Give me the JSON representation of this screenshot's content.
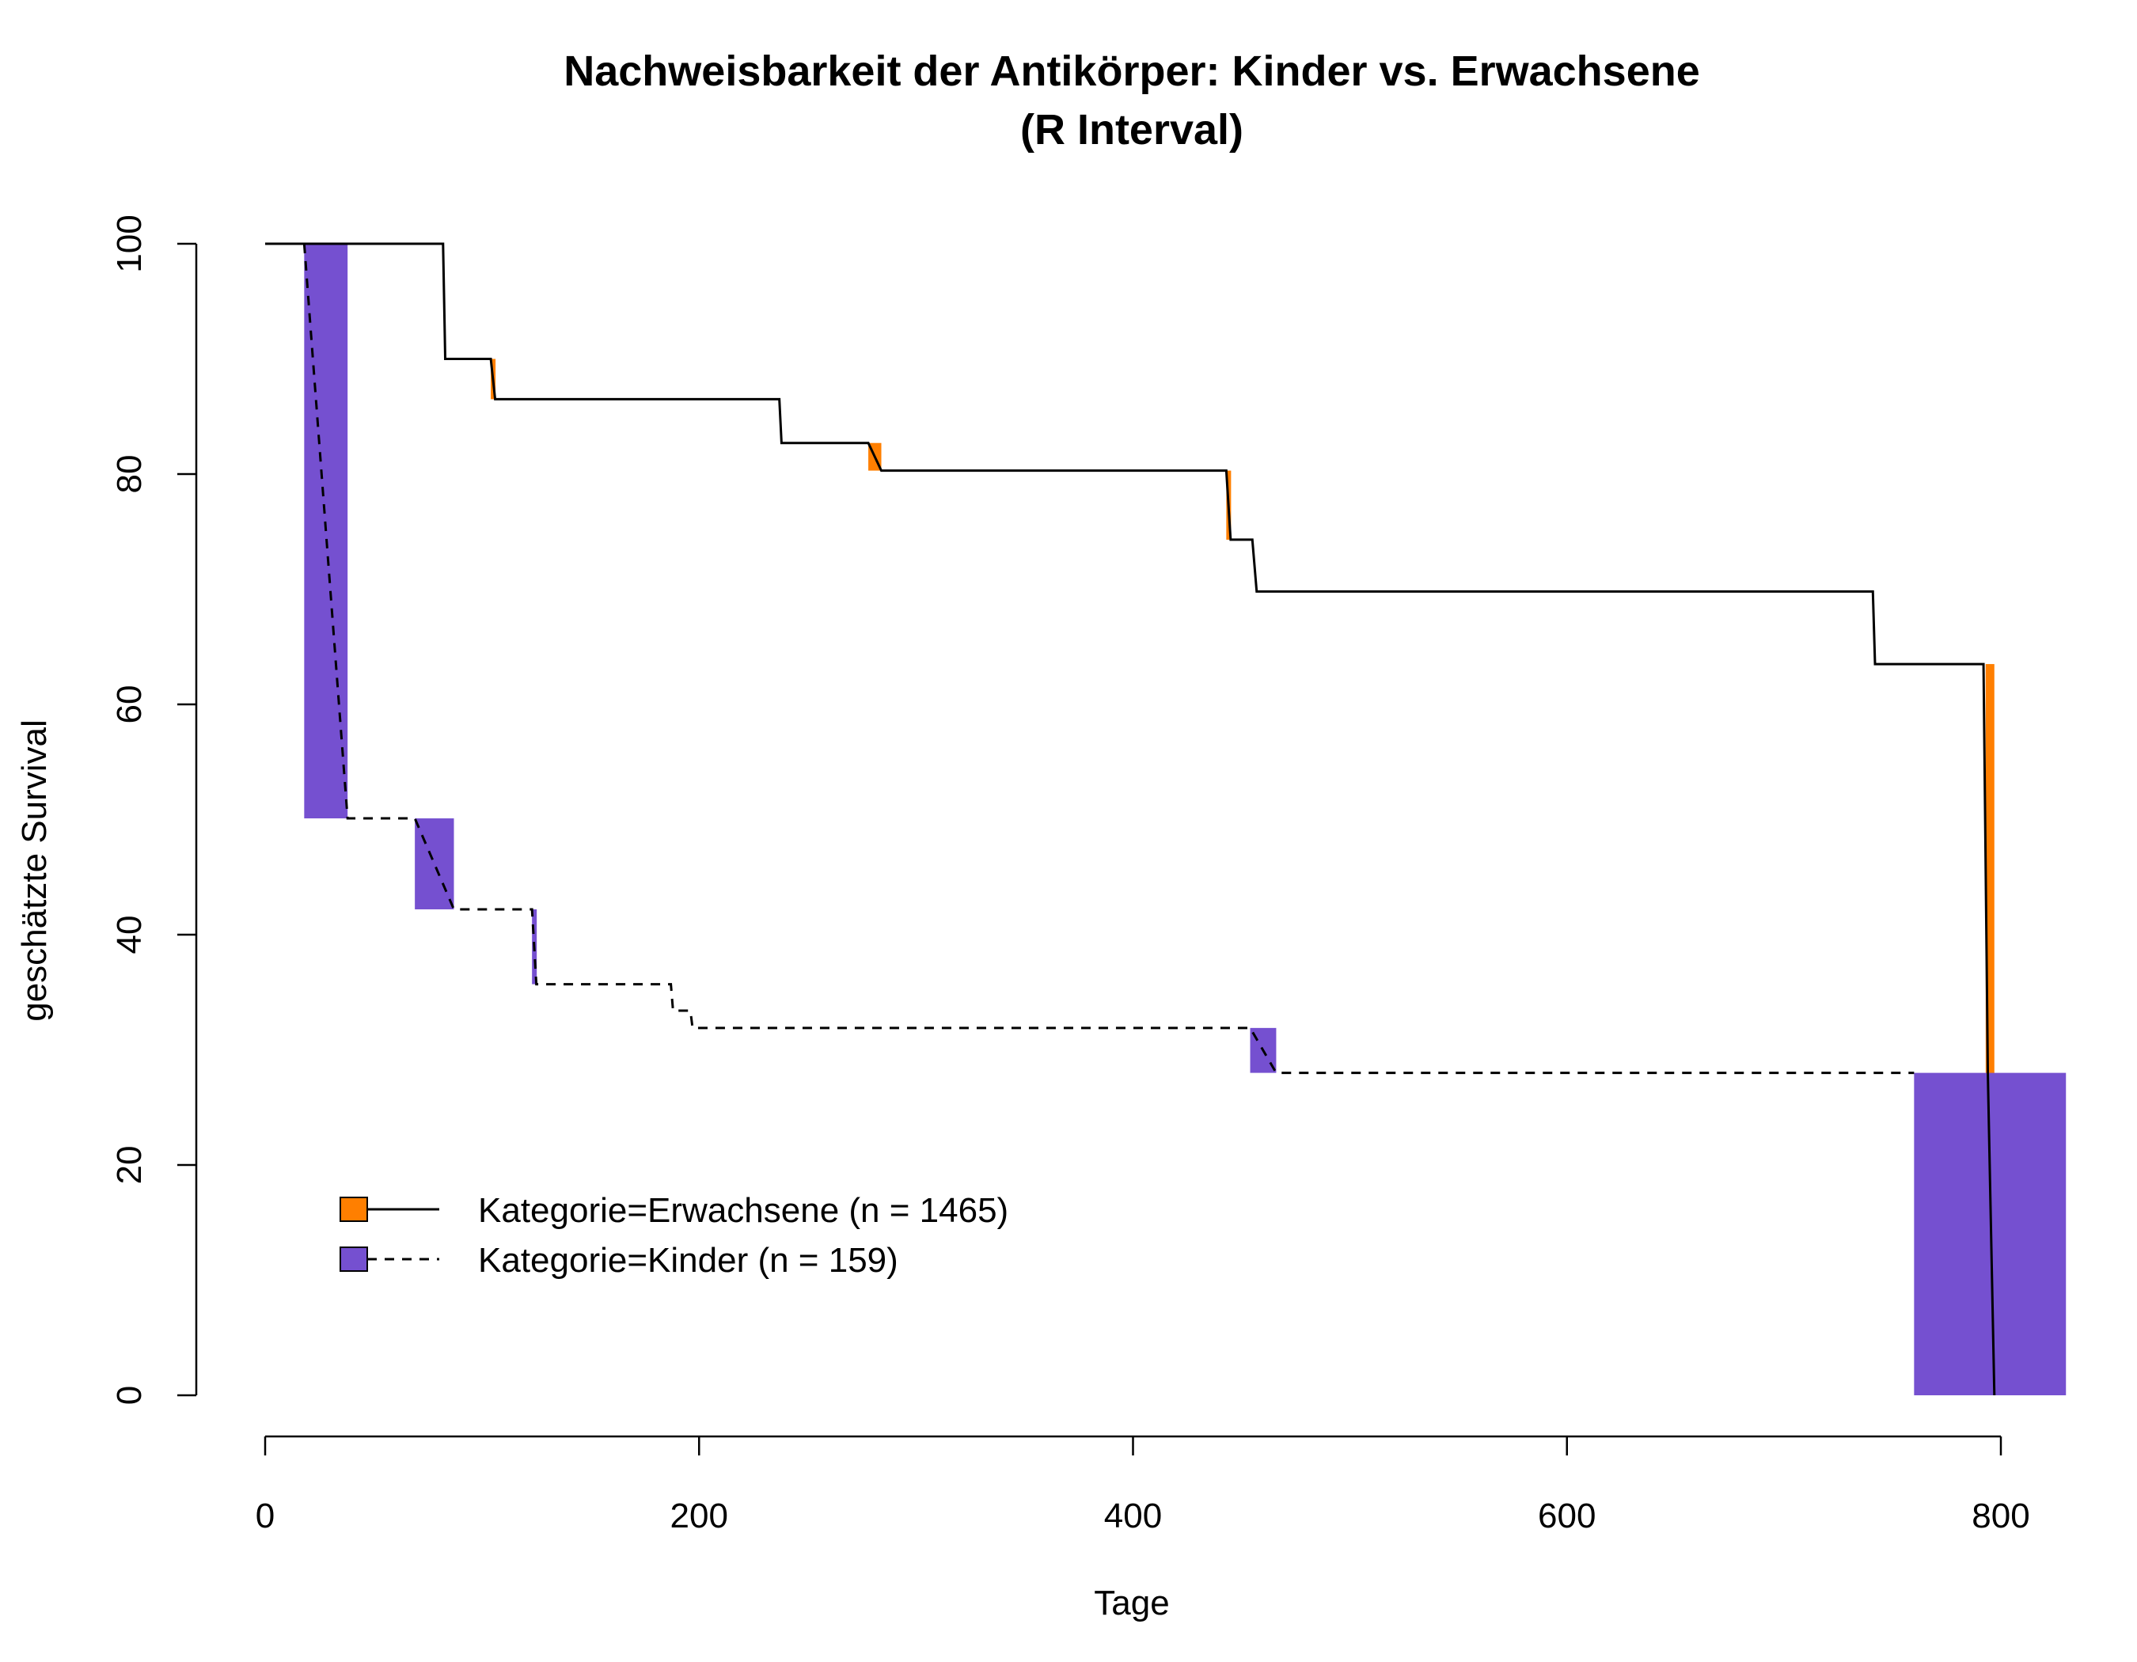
{
  "chart_data": {
    "type": "line",
    "title": "Nachweisbarkeit der Antikörper: Kinder vs. Erwachsene",
    "subtitle": "(R Interval)",
    "xlabel": "Tage",
    "ylabel": "geschätzte Survival",
    "xlim": [
      0,
      830
    ],
    "ylim": [
      0,
      100
    ],
    "x_ticks": [
      "0",
      "200",
      "400",
      "600",
      "800"
    ],
    "y_ticks": [
      "0",
      "20",
      "40",
      "60",
      "80",
      "100"
    ],
    "series": [
      {
        "name": "Kategorie=Erwachsene (n = 1465)",
        "color": "#FF7F00",
        "line_style": "solid",
        "curve": [
          [
            0,
            100
          ],
          [
            82,
            100
          ],
          [
            83,
            90
          ],
          [
            104,
            90
          ],
          [
            106,
            86.5
          ],
          [
            237,
            86.5
          ],
          [
            238,
            82.7
          ],
          [
            278,
            82.7
          ],
          [
            284,
            80.3
          ],
          [
            443,
            80.3
          ],
          [
            445,
            74.3
          ],
          [
            455,
            74.3
          ],
          [
            457,
            69.8
          ],
          [
            741,
            69.8
          ],
          [
            742,
            63.5
          ],
          [
            792,
            63.5
          ],
          [
            794,
            27.9
          ],
          [
            797,
            0
          ]
        ],
        "intervals": [
          {
            "x0": 104,
            "x1": 106,
            "y_high": 90,
            "y_low": 86.5
          },
          {
            "x0": 278,
            "x1": 284,
            "y_high": 82.7,
            "y_low": 80.3
          },
          {
            "x0": 443,
            "x1": 445,
            "y_high": 80.3,
            "y_low": 74.3
          },
          {
            "x0": 793,
            "x1": 797,
            "y_high": 63.5,
            "y_low": 27.9
          }
        ]
      },
      {
        "name": "Kategorie=Kinder (n = 159)",
        "color": "#7550D0",
        "line_style": "dashed",
        "curve": [
          [
            18,
            100
          ],
          [
            38,
            50.1
          ],
          [
            69,
            50.1
          ],
          [
            87,
            42.2
          ],
          [
            123,
            42.2
          ],
          [
            125,
            35.7
          ],
          [
            187,
            35.7
          ],
          [
            188,
            33.4
          ],
          [
            196,
            33.4
          ],
          [
            197,
            31.9
          ],
          [
            454,
            31.9
          ],
          [
            466,
            28
          ],
          [
            760,
            28
          ]
        ],
        "intervals": [
          {
            "x0": 18,
            "x1": 38,
            "y_high": 100,
            "y_low": 50.1
          },
          {
            "x0": 69,
            "x1": 87,
            "y_high": 50.1,
            "y_low": 42.2
          },
          {
            "x0": 123,
            "x1": 125,
            "y_high": 42.2,
            "y_low": 35.7
          },
          {
            "x0": 454,
            "x1": 466,
            "y_high": 31.9,
            "y_low": 28
          },
          {
            "x0": 760,
            "x1": 830,
            "y_high": 28,
            "y_low": 0
          }
        ]
      }
    ],
    "legend_position": "bottom-left"
  }
}
